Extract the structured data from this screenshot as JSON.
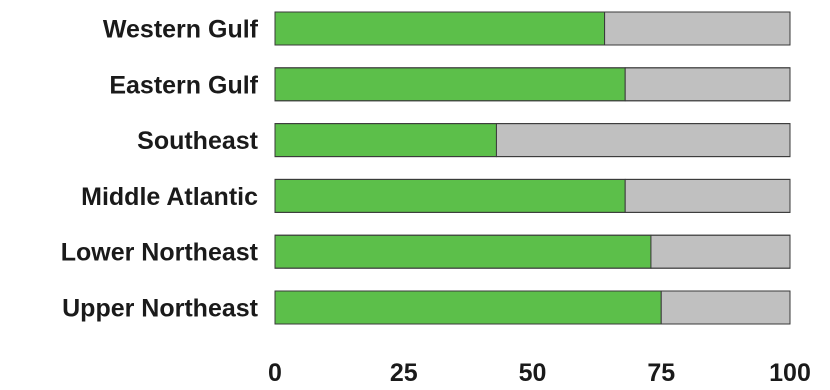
{
  "chart_data": {
    "type": "bar",
    "orientation": "horizontal",
    "stacked": true,
    "categories": [
      "Western Gulf",
      "Eastern Gulf",
      "Southeast",
      "Middle Atlantic",
      "Lower Northeast",
      "Upper Northeast"
    ],
    "series": [
      {
        "values": [
          64,
          68,
          43,
          68,
          73,
          75
        ],
        "color": "#5cbf4a"
      },
      {
        "values": [
          36,
          32,
          57,
          32,
          27,
          25
        ],
        "color": "#c0c0c0"
      }
    ],
    "xticks": [
      "0",
      "25",
      "50",
      "75",
      "100"
    ],
    "xlim": [
      0,
      100
    ],
    "title": "",
    "xlabel": "",
    "ylabel": "",
    "grid": false,
    "legend": "none"
  }
}
